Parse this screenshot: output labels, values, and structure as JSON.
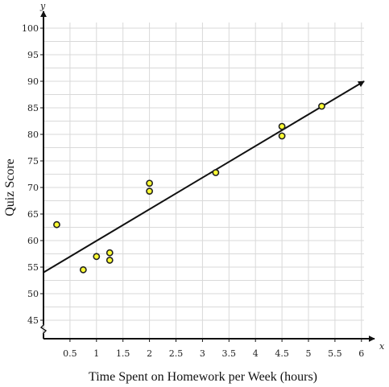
{
  "chart_data": {
    "type": "scatter",
    "title": "",
    "xlabel": "Time Spent on Homework per Week (hours)",
    "ylabel": "Quiz Score",
    "x_axis_letter": "x",
    "y_axis_letter": "y",
    "xlim": [
      0,
      6
    ],
    "ylim": [
      40,
      100
    ],
    "y_axis_break": true,
    "grid": true,
    "x_ticks": [
      0.5,
      1,
      1.5,
      2,
      2.5,
      3,
      3.5,
      4,
      4.5,
      5,
      5.5,
      6
    ],
    "x_tick_labels": [
      "0.5",
      "1",
      "1.5",
      "2",
      "2.5",
      "3",
      "3.5",
      "4",
      "4.5",
      "5",
      "5.5",
      "6"
    ],
    "y_ticks": [
      45,
      50,
      55,
      60,
      65,
      70,
      75,
      80,
      85,
      90,
      95,
      100
    ],
    "y_tick_labels": [
      "45",
      "50",
      "55",
      "60",
      "65",
      "70",
      "75",
      "80",
      "85",
      "90",
      "95",
      "100"
    ],
    "points": [
      {
        "x": 0.25,
        "y": 63
      },
      {
        "x": 0.75,
        "y": 54.5
      },
      {
        "x": 1.0,
        "y": 57
      },
      {
        "x": 1.25,
        "y": 56.3
      },
      {
        "x": 1.25,
        "y": 57.7
      },
      {
        "x": 2.0,
        "y": 69.3
      },
      {
        "x": 2.0,
        "y": 70.8
      },
      {
        "x": 3.25,
        "y": 72.8
      },
      {
        "x": 4.5,
        "y": 79.7
      },
      {
        "x": 4.5,
        "y": 81.5
      },
      {
        "x": 5.25,
        "y": 85.3
      }
    ],
    "trend_line": {
      "x_start": 0,
      "y_start": 54,
      "x_end": 6.05,
      "y_end": 90
    },
    "colors": {
      "point_fill": "#ffff33",
      "point_stroke": "#222222",
      "line": "#111111",
      "grid": "#d9d9d9",
      "axis": "#111111"
    }
  }
}
